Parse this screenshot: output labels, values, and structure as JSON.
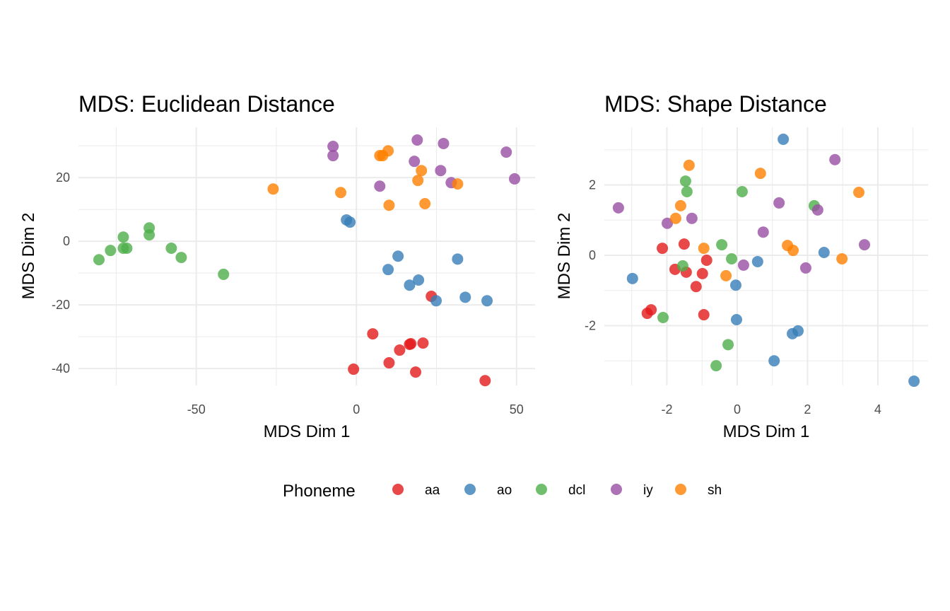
{
  "chart_data": [
    {
      "type": "scatter",
      "title": "MDS: Euclidean Distance",
      "xlabel": "MDS Dim 1",
      "ylabel": "MDS Dim 2",
      "xlim": [
        -86.8,
        55.8
      ],
      "ylim": [
        -45.3,
        35.8
      ],
      "xticks": [
        -50,
        0,
        50
      ],
      "yticks": [
        -40,
        -20,
        0,
        20
      ],
      "grid": true,
      "series": [
        {
          "name": "aa",
          "points": [
            [
              -0.9,
              -40.2
            ],
            [
              5.1,
              -29.1
            ],
            [
              10.2,
              -38.2
            ],
            [
              13.5,
              -34.2
            ],
            [
              16.6,
              -32.4
            ],
            [
              17.0,
              -32.2
            ],
            [
              18.5,
              -41.1
            ],
            [
              20.8,
              -32.0
            ],
            [
              23.4,
              -17.3
            ],
            [
              40.2,
              -43.8
            ]
          ]
        },
        {
          "name": "ao",
          "points": [
            [
              -3.1,
              6.7
            ],
            [
              -2.0,
              6.0
            ],
            [
              9.9,
              -8.9
            ],
            [
              13.0,
              -4.7
            ],
            [
              16.6,
              -13.8
            ],
            [
              19.4,
              -12.2
            ],
            [
              24.9,
              -18.7
            ],
            [
              31.6,
              -5.6
            ],
            [
              34.0,
              -17.6
            ],
            [
              40.8,
              -18.7
            ]
          ]
        },
        {
          "name": "dcl",
          "points": [
            [
              -80.4,
              -5.8
            ],
            [
              -76.8,
              -2.9
            ],
            [
              -72.8,
              1.3
            ],
            [
              -72.8,
              -2.2
            ],
            [
              -71.7,
              -2.2
            ],
            [
              -64.7,
              4.2
            ],
            [
              -64.7,
              2.0
            ],
            [
              -57.8,
              -2.2
            ],
            [
              -54.7,
              -5.1
            ],
            [
              -41.5,
              -10.4
            ]
          ]
        },
        {
          "name": "iy",
          "points": [
            [
              -7.3,
              29.8
            ],
            [
              -7.3,
              26.9
            ],
            [
              7.3,
              17.3
            ],
            [
              18.1,
              25.1
            ],
            [
              19.0,
              31.8
            ],
            [
              26.3,
              22.2
            ],
            [
              27.2,
              30.7
            ],
            [
              29.6,
              18.4
            ],
            [
              46.8,
              28.0
            ],
            [
              49.4,
              19.6
            ]
          ]
        },
        {
          "name": "sh",
          "points": [
            [
              -26.0,
              16.4
            ],
            [
              -4.9,
              15.3
            ],
            [
              7.3,
              26.9
            ],
            [
              8.2,
              26.9
            ],
            [
              9.9,
              28.4
            ],
            [
              10.2,
              11.3
            ],
            [
              19.2,
              19.1
            ],
            [
              20.3,
              22.2
            ],
            [
              21.4,
              11.8
            ],
            [
              31.6,
              18.0
            ]
          ]
        }
      ]
    },
    {
      "type": "scatter",
      "title": "MDS: Shape Distance",
      "xlabel": "MDS Dim 1",
      "ylabel": "MDS Dim 2",
      "xlim": [
        -3.78,
        5.43
      ],
      "ylim": [
        -3.7,
        3.64
      ],
      "xticks": [
        -2,
        0,
        2,
        4
      ],
      "yticks": [
        -2,
        0,
        2
      ],
      "grid": true,
      "series": [
        {
          "name": "aa",
          "points": [
            [
              -2.56,
              -1.65
            ],
            [
              -2.45,
              -1.55
            ],
            [
              -2.13,
              0.2
            ],
            [
              -1.77,
              -0.4
            ],
            [
              -1.51,
              0.32
            ],
            [
              -1.45,
              -0.48
            ],
            [
              -1.17,
              -0.89
            ],
            [
              -0.99,
              -0.52
            ],
            [
              -0.95,
              -1.69
            ],
            [
              -0.87,
              -0.14
            ]
          ]
        },
        {
          "name": "ao",
          "points": [
            [
              -2.98,
              -0.66
            ],
            [
              -0.04,
              -0.85
            ],
            [
              -0.02,
              -1.83
            ],
            [
              0.58,
              -0.18
            ],
            [
              1.05,
              -3.0
            ],
            [
              1.31,
              3.3
            ],
            [
              1.57,
              -2.23
            ],
            [
              1.73,
              -2.15
            ],
            [
              2.47,
              0.08
            ],
            [
              5.03,
              -3.58
            ]
          ]
        },
        {
          "name": "dcl",
          "points": [
            [
              -2.11,
              -1.77
            ],
            [
              -1.55,
              -0.3
            ],
            [
              -1.47,
              2.11
            ],
            [
              -1.43,
              1.81
            ],
            [
              -0.6,
              -3.14
            ],
            [
              -0.44,
              0.3
            ],
            [
              -0.26,
              -2.54
            ],
            [
              -0.16,
              -0.1
            ],
            [
              0.14,
              1.81
            ],
            [
              2.19,
              1.41
            ]
          ]
        },
        {
          "name": "iy",
          "points": [
            [
              -3.38,
              1.35
            ],
            [
              -1.99,
              0.91
            ],
            [
              -1.29,
              1.05
            ],
            [
              0.18,
              -0.28
            ],
            [
              0.74,
              0.66
            ],
            [
              1.19,
              1.49
            ],
            [
              1.95,
              -0.36
            ],
            [
              2.29,
              1.29
            ],
            [
              2.78,
              2.72
            ],
            [
              3.62,
              0.3
            ]
          ]
        },
        {
          "name": "sh",
          "points": [
            [
              -1.75,
              1.05
            ],
            [
              -1.61,
              1.41
            ],
            [
              -1.37,
              2.56
            ],
            [
              -0.95,
              0.2
            ],
            [
              -0.32,
              -0.58
            ],
            [
              0.66,
              2.33
            ],
            [
              1.43,
              0.28
            ],
            [
              1.59,
              0.14
            ],
            [
              2.98,
              -0.1
            ],
            [
              3.46,
              1.79
            ]
          ]
        }
      ]
    }
  ],
  "legend": {
    "title": "Phoneme",
    "items": [
      {
        "label": "aa",
        "color": "#E41A1C"
      },
      {
        "label": "ao",
        "color": "#377EB8"
      },
      {
        "label": "dcl",
        "color": "#4DAF4A"
      },
      {
        "label": "iy",
        "color": "#984EA3"
      },
      {
        "label": "sh",
        "color": "#FF7F00"
      }
    ]
  }
}
